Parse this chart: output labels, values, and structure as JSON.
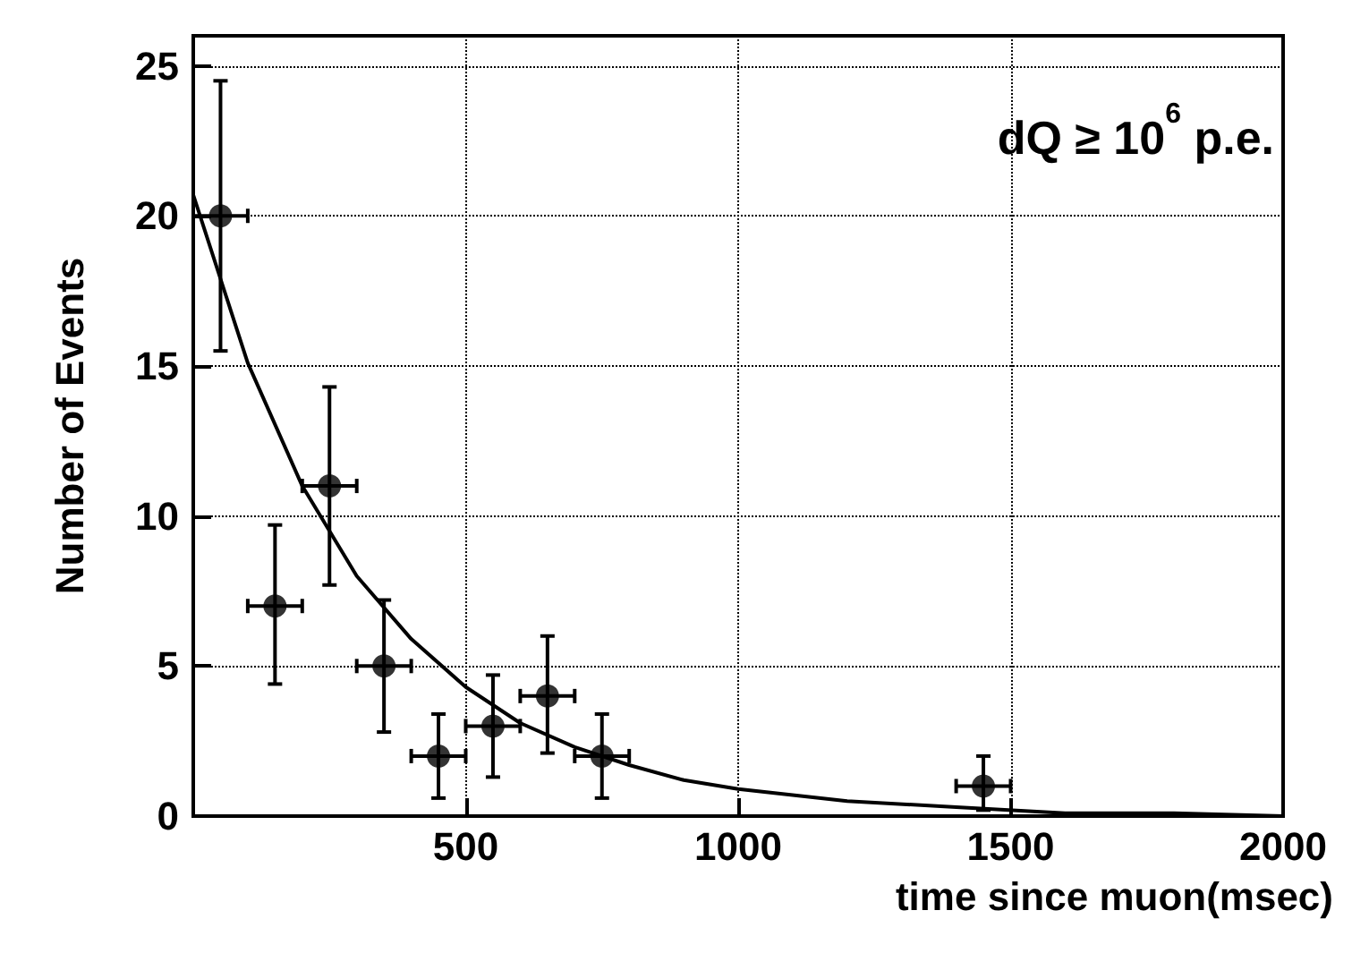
{
  "chart_data": {
    "type": "scatter",
    "xlabel": "time since muon(msec)",
    "ylabel": "Number of Events",
    "annotations": [
      "dQ ≥ 10$^{6}$ p.e."
    ],
    "xlim": [
      0,
      2000
    ],
    "xticks": [
      {
        "value": 0,
        "label": null
      },
      500,
      1000,
      1500,
      2000
    ],
    "ylim": [
      0,
      26
    ],
    "yticks": [
      0,
      5,
      10,
      15,
      20,
      25
    ],
    "grid": true,
    "marker": "circle",
    "series": [
      {
        "color": "#000000",
        "x": [
          50,
          150,
          250,
          350,
          450,
          550,
          650,
          750,
          1450
        ],
        "values": [
          20,
          7,
          11,
          5,
          2,
          3,
          4,
          2,
          1
        ],
        "errors": [
          4.5,
          [
            4.4,
            9.7
          ],
          [
            7.7,
            14.3
          ],
          [
            2.8,
            7.2
          ],
          [
            0.6,
            3.4
          ],
          [
            1.3,
            4.7
          ],
          [
            2.1,
            6.0
          ],
          [
            0.6,
            3.4
          ],
          [
            0.2,
            2.0
          ]
        ],
        "xerrors": [
          50,
          50,
          50,
          50,
          50,
          50,
          50,
          50,
          50
        ]
      },
      {
        "type": "line",
        "color": "#000000",
        "marker": "none",
        "x": [
          0,
          100,
          200,
          300,
          400,
          500,
          600,
          700,
          800,
          900,
          1000,
          1200,
          1400,
          1600,
          1800,
          2000
        ],
        "values": [
          20.7,
          15.1,
          11.0,
          8.0,
          5.9,
          4.3,
          3.1,
          2.3,
          1.7,
          1.2,
          0.9,
          0.5,
          0.3,
          0.1,
          0.1,
          0.0
        ]
      }
    ]
  }
}
